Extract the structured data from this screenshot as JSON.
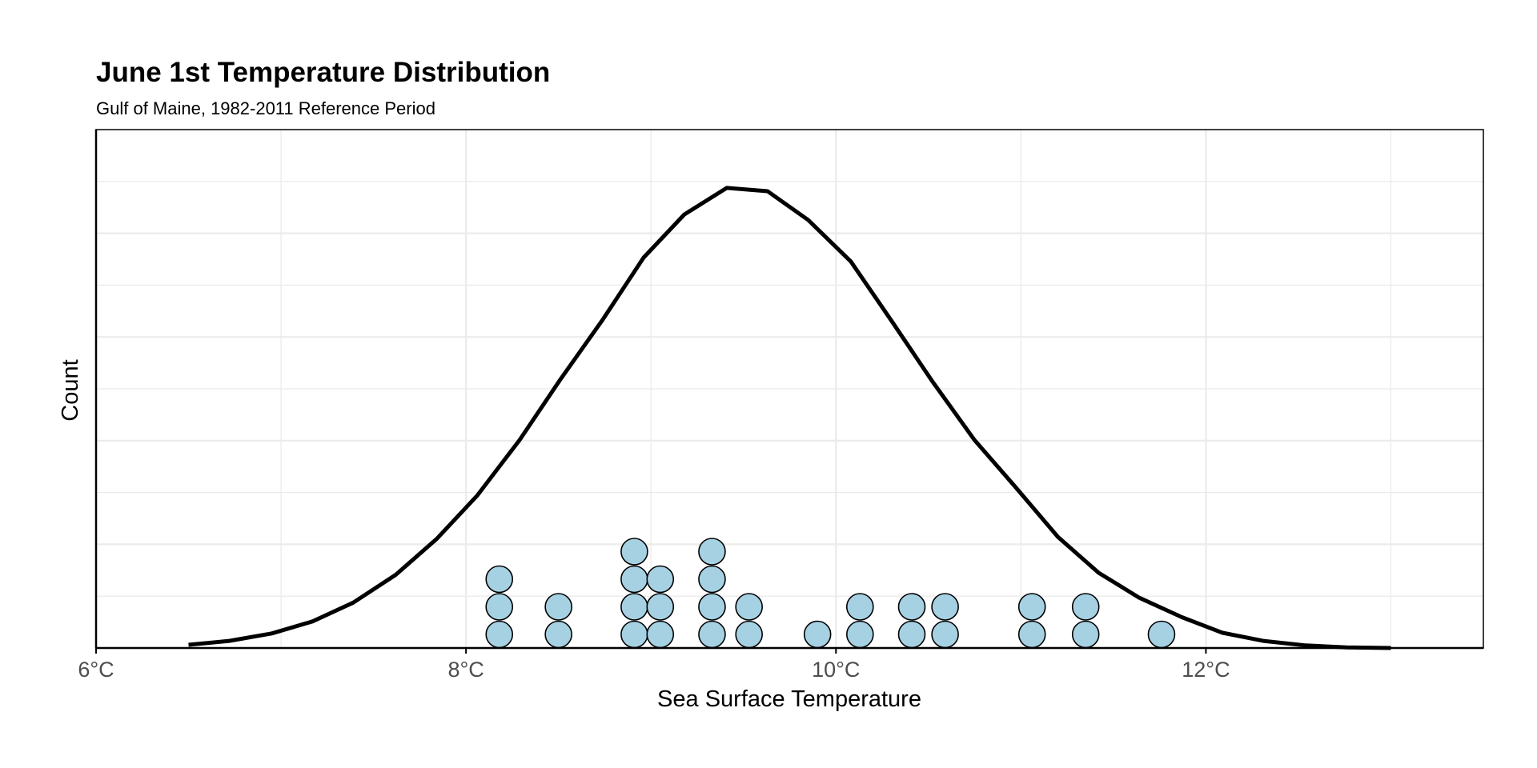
{
  "chart_data": {
    "type": "dotplot",
    "title": "June 1st Temperature Distribution",
    "subtitle": "Gulf of Maine, 1982-2011 Reference Period",
    "xlabel": "Sea Surface Temperature",
    "ylabel": "Count",
    "x_unit": "°C",
    "xlim": [
      6,
      13.5
    ],
    "x_ticks": [
      6,
      8,
      10,
      12
    ],
    "x_tick_labels": [
      "6°C",
      "8°C",
      "10°C",
      "12°C"
    ],
    "grid": true,
    "dots": [
      {
        "x": 8.18,
        "count": 3
      },
      {
        "x": 8.5,
        "count": 2
      },
      {
        "x": 8.91,
        "count": 4
      },
      {
        "x": 9.05,
        "count": 3
      },
      {
        "x": 9.33,
        "count": 4
      },
      {
        "x": 9.53,
        "count": 2
      },
      {
        "x": 9.9,
        "count": 1
      },
      {
        "x": 10.13,
        "count": 2
      },
      {
        "x": 10.41,
        "count": 2
      },
      {
        "x": 10.59,
        "count": 2
      },
      {
        "x": 11.06,
        "count": 2
      },
      {
        "x": 11.35,
        "count": 2
      },
      {
        "x": 11.76,
        "count": 1
      }
    ],
    "density_curve": {
      "x": [
        6.5,
        6.72,
        6.95,
        7.17,
        7.39,
        7.62,
        7.84,
        8.06,
        8.29,
        8.51,
        8.74,
        8.96,
        9.18,
        9.41,
        9.63,
        9.85,
        10.08,
        10.3,
        10.52,
        10.75,
        10.97,
        11.2,
        11.42,
        11.64,
        11.87,
        12.09,
        12.31,
        12.54,
        12.76,
        13.0
      ],
      "y": [
        0.1,
        0.22,
        0.45,
        0.82,
        1.4,
        2.26,
        3.36,
        4.7,
        6.42,
        8.29,
        10.14,
        12.05,
        13.38,
        14.2,
        14.1,
        13.21,
        11.93,
        10.1,
        8.24,
        6.41,
        4.97,
        3.43,
        2.32,
        1.55,
        0.95,
        0.47,
        0.22,
        0.08,
        0.02,
        0.0
      ]
    },
    "y_gridlines": 10,
    "colors": {
      "dot_fill": "#a6d1e3",
      "dot_stroke": "#000000",
      "curve": "#000000",
      "grid": "#ebebeb",
      "axis": "#000000"
    }
  }
}
